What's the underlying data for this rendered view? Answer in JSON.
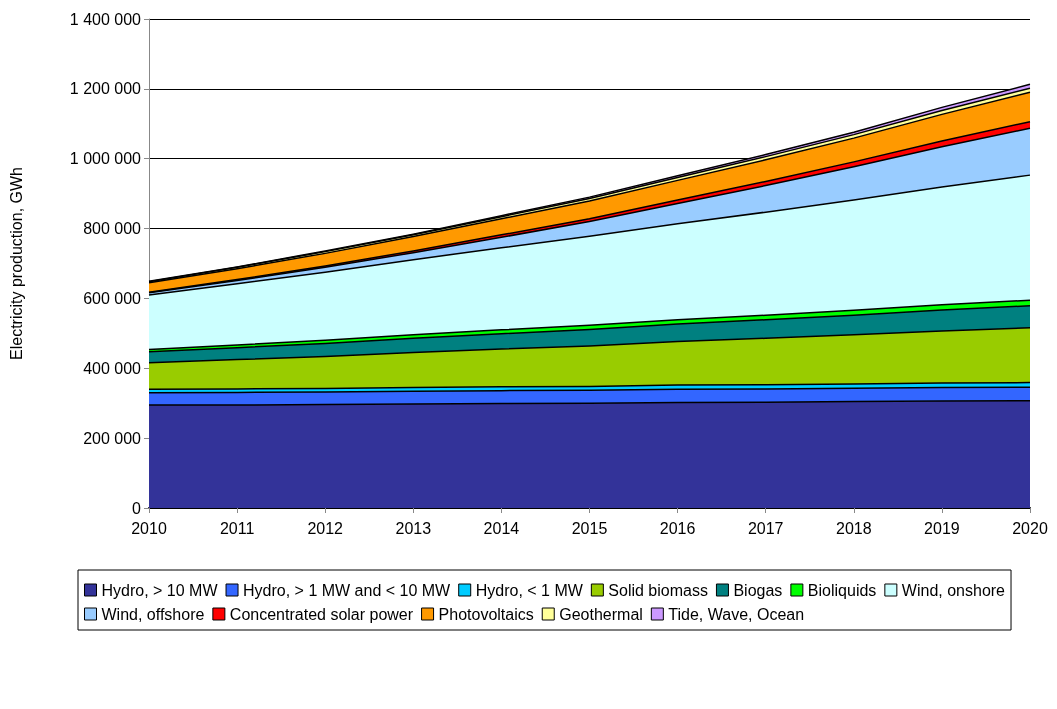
{
  "chart_data": {
    "type": "area",
    "stacked": true,
    "ylabel": "Electricity production, GWh",
    "categories": [
      "2010",
      "2011",
      "2012",
      "2013",
      "2014",
      "2015",
      "2016",
      "2017",
      "2018",
      "2019",
      "2020"
    ],
    "ylim": [
      0,
      1400000
    ],
    "yticks": [
      {
        "value": 0,
        "label": "0"
      },
      {
        "value": 200000,
        "label": "200 000"
      },
      {
        "value": 400000,
        "label": "400 000"
      },
      {
        "value": 600000,
        "label": "600 000"
      },
      {
        "value": 800000,
        "label": "800 000"
      },
      {
        "value": 1000000,
        "label": "1 000 000"
      },
      {
        "value": 1200000,
        "label": "1 200 000"
      },
      {
        "value": 1400000,
        "label": "1 400 000"
      }
    ],
    "grid": "y",
    "legend": "bottom",
    "series": [
      {
        "name": "Hydro, > 10 MW",
        "color": "#333399",
        "values": [
          295000,
          295000,
          296000,
          298000,
          299000,
          300000,
          302000,
          303000,
          305000,
          306000,
          307000
        ]
      },
      {
        "name": "Hydro, > 1 MW and < 10 MW",
        "color": "#3366ff",
        "values": [
          35000,
          36000,
          36000,
          36000,
          37000,
          37000,
          38000,
          38000,
          38000,
          39000,
          39000
        ]
      },
      {
        "name": "Hydro, < 1 MW",
        "color": "#00ccff",
        "values": [
          10000,
          10000,
          10000,
          11000,
          11000,
          11000,
          12000,
          12000,
          12000,
          13000,
          13000
        ]
      },
      {
        "name": "Solid biomass",
        "color": "#99cc00",
        "values": [
          76000,
          84000,
          92000,
          100000,
          108000,
          116000,
          125000,
          133000,
          141000,
          149000,
          157000
        ]
      },
      {
        "name": "Biogas",
        "color": "#008080",
        "values": [
          31000,
          34000,
          37000,
          41000,
          44000,
          47000,
          50000,
          53000,
          56000,
          60000,
          63000
        ]
      },
      {
        "name": "Bioliquids",
        "color": "#00ff00",
        "values": [
          7000,
          8000,
          9000,
          10000,
          11000,
          12000,
          12000,
          13000,
          14000,
          15000,
          16000
        ]
      },
      {
        "name": "Wind, onshore",
        "color": "#ccffff",
        "values": [
          156000,
          175000,
          195000,
          215000,
          235000,
          255000,
          275000,
          295000,
          316000,
          337000,
          358000
        ]
      },
      {
        "name": "Wind, offshore",
        "color": "#99ccff",
        "values": [
          6000,
          9000,
          14000,
          20000,
          30000,
          42000,
          58000,
          76000,
          95000,
          115000,
          134000
        ]
      },
      {
        "name": "Concentrated solar power",
        "color": "#ff0000",
        "values": [
          2000,
          3000,
          4000,
          5000,
          7000,
          8000,
          10000,
          12000,
          14000,
          17000,
          19000
        ]
      },
      {
        "name": "Photovoltaics",
        "color": "#ff9900",
        "values": [
          27000,
          31000,
          36000,
          41000,
          46000,
          51000,
          56000,
          62000,
          68000,
          76000,
          84000
        ]
      },
      {
        "name": "Geothermal",
        "color": "#ffff99",
        "values": [
          3000,
          4000,
          5000,
          5000,
          6000,
          7000,
          8000,
          9000,
          10000,
          11000,
          12000
        ]
      },
      {
        "name": "Tide, Wave, Ocean",
        "color": "#cc99ff",
        "values": [
          1000,
          1000,
          2000,
          2000,
          3000,
          4000,
          5000,
          6000,
          7000,
          9000,
          11000
        ]
      }
    ]
  }
}
